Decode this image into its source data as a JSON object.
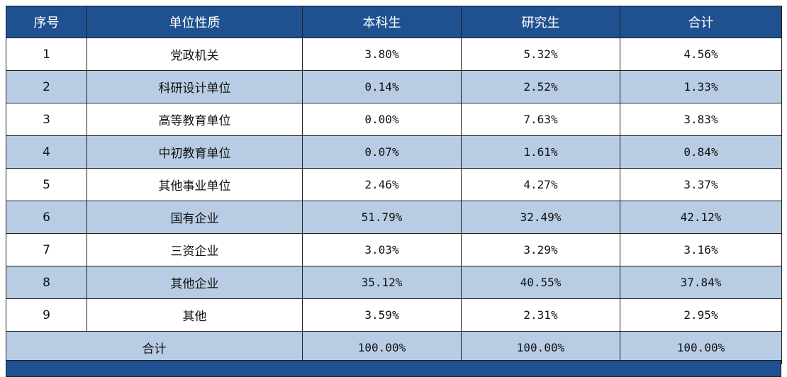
{
  "header": {
    "col_index": "序号",
    "col_unit": "单位性质",
    "col_undergrad": "本科生",
    "col_graduate": "研究生",
    "col_total": "合计"
  },
  "rows": [
    {
      "index": "1",
      "unit": "党政机关",
      "undergrad": "3.80%",
      "graduate": "5.32%",
      "total": "4.56%"
    },
    {
      "index": "2",
      "unit": "科研设计单位",
      "undergrad": "0.14%",
      "graduate": "2.52%",
      "total": "1.33%"
    },
    {
      "index": "3",
      "unit": "高等教育单位",
      "undergrad": "0.00%",
      "graduate": "7.63%",
      "total": "3.83%"
    },
    {
      "index": "4",
      "unit": "中初教育单位",
      "undergrad": "0.07%",
      "graduate": "1.61%",
      "total": "0.84%"
    },
    {
      "index": "5",
      "unit": "其他事业单位",
      "undergrad": "2.46%",
      "graduate": "4.27%",
      "total": "3.37%"
    },
    {
      "index": "6",
      "unit": "国有企业",
      "undergrad": "51.79%",
      "graduate": "32.49%",
      "total": "42.12%"
    },
    {
      "index": "7",
      "unit": "三资企业",
      "undergrad": "3.03%",
      "graduate": "3.29%",
      "total": "3.16%"
    },
    {
      "index": "8",
      "unit": "其他企业",
      "undergrad": "35.12%",
      "graduate": "40.55%",
      "total": "37.84%"
    },
    {
      "index": "9",
      "unit": "其他",
      "undergrad": "3.59%",
      "graduate": "2.31%",
      "total": "2.95%"
    }
  ],
  "summary": {
    "label": "合计",
    "undergrad": "100.00%",
    "graduate": "100.00%",
    "total": "100.00%"
  }
}
